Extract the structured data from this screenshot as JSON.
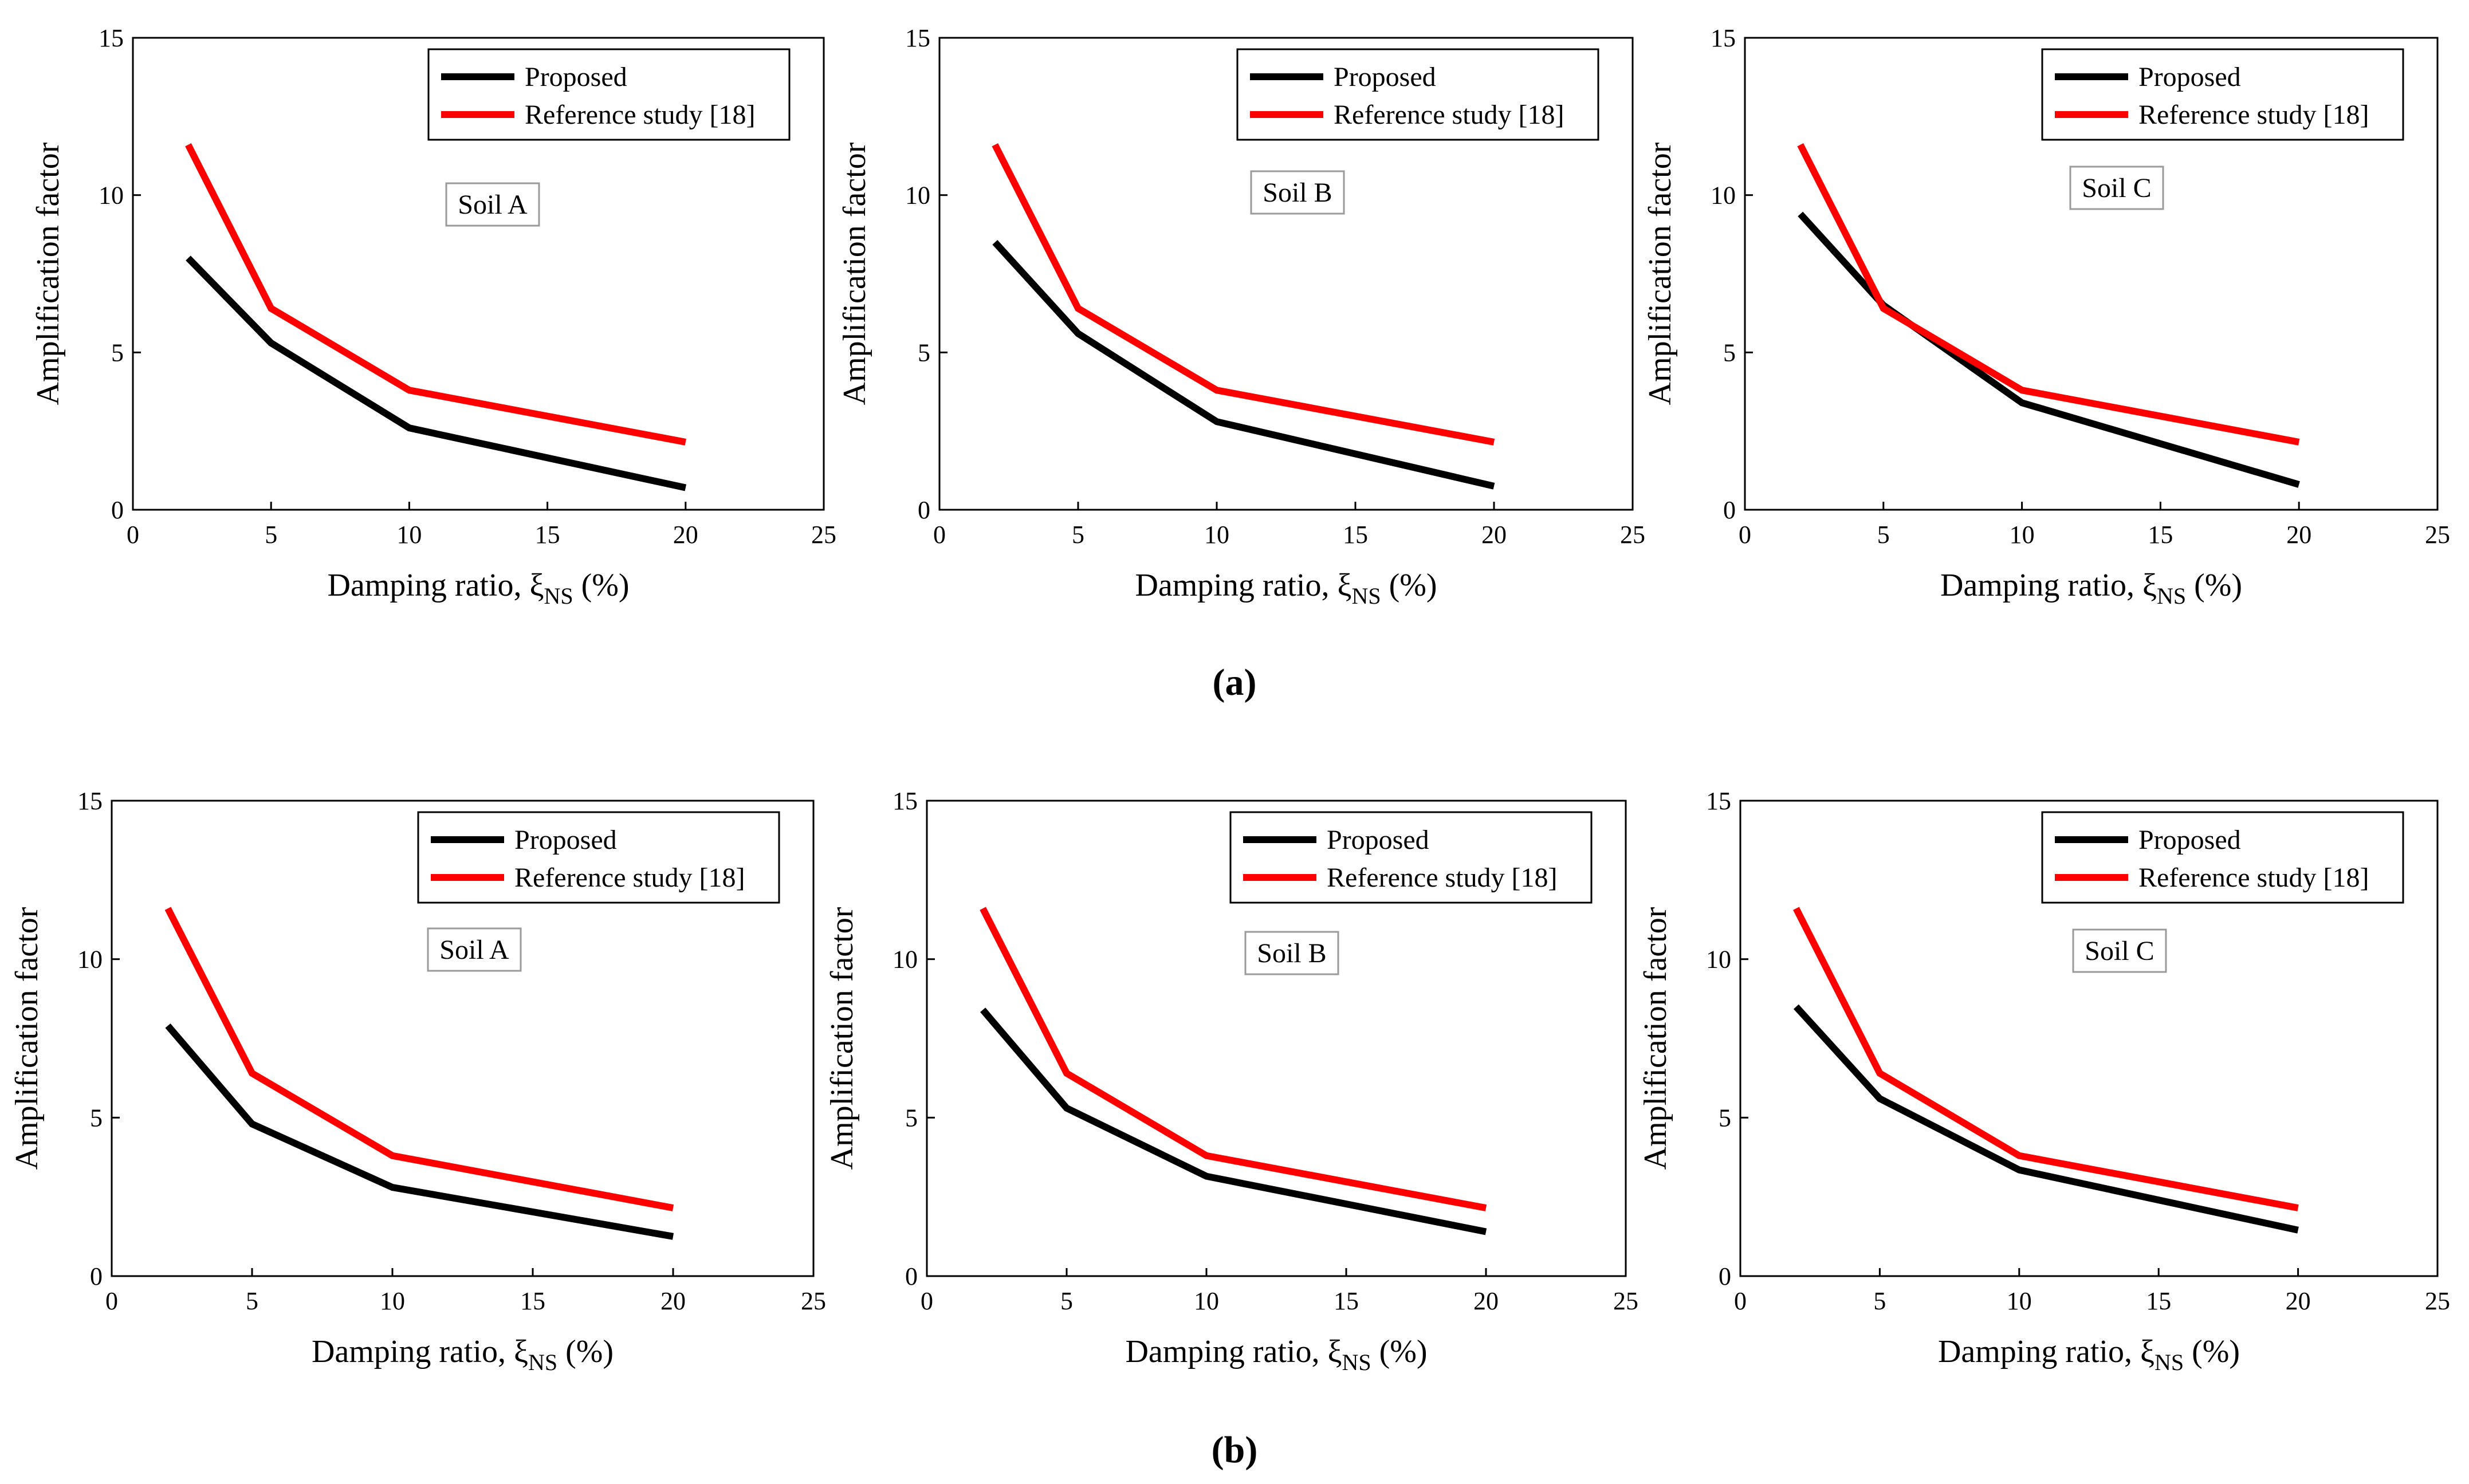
{
  "panel_labels": [
    "(a)",
    "(b)"
  ],
  "colors": {
    "proposed": "#000000",
    "reference": "#ff0000"
  },
  "chart_data": [
    {
      "type": "line",
      "row": "a",
      "annotation": "Soil A",
      "xlabel_main": "Damping ratio, ξ",
      "xlabel_sub": "NS",
      "xlabel_tail": " (%)",
      "ylabel": "Amplification factor",
      "xlim": [
        0,
        25
      ],
      "ylim": [
        0,
        15
      ],
      "xticks": [
        0,
        5,
        10,
        15,
        20,
        25
      ],
      "yticks": [
        0,
        5,
        10,
        15
      ],
      "legend_position": "top-right",
      "series": [
        {
          "name": "Proposed",
          "x": [
            2,
            5,
            10,
            20
          ],
          "y": [
            8.0,
            5.3,
            2.6,
            0.7
          ]
        },
        {
          "name": "Reference study [18]",
          "x": [
            2,
            5,
            10,
            20
          ],
          "y": [
            11.6,
            6.4,
            3.8,
            2.15
          ]
        }
      ]
    },
    {
      "type": "line",
      "row": "a",
      "annotation": "Soil B",
      "xlabel_main": "Damping ratio, ξ",
      "xlabel_sub": "NS",
      "xlabel_tail": " (%)",
      "ylabel": "Amplification factor",
      "xlim": [
        0,
        25
      ],
      "ylim": [
        0,
        15
      ],
      "xticks": [
        0,
        5,
        10,
        15,
        20,
        25
      ],
      "yticks": [
        0,
        5,
        10,
        15
      ],
      "legend_position": "top-right",
      "series": [
        {
          "name": "Proposed",
          "x": [
            2,
            5,
            10,
            20
          ],
          "y": [
            8.5,
            5.6,
            2.8,
            0.75
          ]
        },
        {
          "name": "Reference study [18]",
          "x": [
            2,
            5,
            10,
            20
          ],
          "y": [
            11.6,
            6.4,
            3.8,
            2.15
          ]
        }
      ]
    },
    {
      "type": "line",
      "row": "a",
      "annotation": "Soil C",
      "xlabel_main": "Damping ratio, ξ",
      "xlabel_sub": "NS",
      "xlabel_tail": " (%)",
      "ylabel": "Amplification factor",
      "xlim": [
        0,
        25
      ],
      "ylim": [
        0,
        15
      ],
      "xticks": [
        0,
        5,
        10,
        15,
        20,
        25
      ],
      "yticks": [
        0,
        5,
        10,
        15
      ],
      "legend_position": "top-right",
      "series": [
        {
          "name": "Proposed",
          "x": [
            2,
            5,
            10,
            20
          ],
          "y": [
            9.4,
            6.5,
            3.4,
            0.8
          ]
        },
        {
          "name": "Reference study [18]",
          "x": [
            2,
            5,
            10,
            20
          ],
          "y": [
            11.6,
            6.4,
            3.8,
            2.15
          ]
        }
      ]
    },
    {
      "type": "line",
      "row": "b",
      "annotation": "Soil A",
      "xlabel_main": "Damping ratio, ξ",
      "xlabel_sub": "NS",
      "xlabel_tail": " (%)",
      "ylabel": "Amplification factor",
      "xlim": [
        0,
        25
      ],
      "ylim": [
        0,
        15
      ],
      "xticks": [
        0,
        5,
        10,
        15,
        20,
        25
      ],
      "yticks": [
        0,
        5,
        10,
        15
      ],
      "legend_position": "top-right",
      "series": [
        {
          "name": "Proposed",
          "x": [
            2,
            5,
            10,
            20
          ],
          "y": [
            7.9,
            4.8,
            2.8,
            1.25
          ]
        },
        {
          "name": "Reference study [18]",
          "x": [
            2,
            5,
            10,
            20
          ],
          "y": [
            11.6,
            6.4,
            3.8,
            2.15
          ]
        }
      ]
    },
    {
      "type": "line",
      "row": "b",
      "annotation": "Soil B",
      "xlabel_main": "Damping ratio, ξ",
      "xlabel_sub": "NS",
      "xlabel_tail": " (%)",
      "ylabel": "Amplification factor",
      "xlim": [
        0,
        25
      ],
      "ylim": [
        0,
        15
      ],
      "xticks": [
        0,
        5,
        10,
        15,
        20,
        25
      ],
      "yticks": [
        0,
        5,
        10,
        15
      ],
      "legend_position": "top-right",
      "series": [
        {
          "name": "Proposed",
          "x": [
            2,
            5,
            10,
            20
          ],
          "y": [
            8.4,
            5.3,
            3.15,
            1.4
          ]
        },
        {
          "name": "Reference study [18]",
          "x": [
            2,
            5,
            10,
            20
          ],
          "y": [
            11.6,
            6.4,
            3.8,
            2.15
          ]
        }
      ]
    },
    {
      "type": "line",
      "row": "b",
      "annotation": "Soil C",
      "xlabel_main": "Damping ratio, ξ",
      "xlabel_sub": "NS",
      "xlabel_tail": " (%)",
      "ylabel": "Amplification factor",
      "xlim": [
        0,
        25
      ],
      "ylim": [
        0,
        15
      ],
      "xticks": [
        0,
        5,
        10,
        15,
        20,
        25
      ],
      "yticks": [
        0,
        5,
        10,
        15
      ],
      "legend_position": "top-right",
      "series": [
        {
          "name": "Proposed",
          "x": [
            2,
            5,
            10,
            20
          ],
          "y": [
            8.5,
            5.6,
            3.35,
            1.45
          ]
        },
        {
          "name": "Reference study [18]",
          "x": [
            2,
            5,
            10,
            20
          ],
          "y": [
            11.6,
            6.4,
            3.8,
            2.15
          ]
        }
      ]
    }
  ]
}
